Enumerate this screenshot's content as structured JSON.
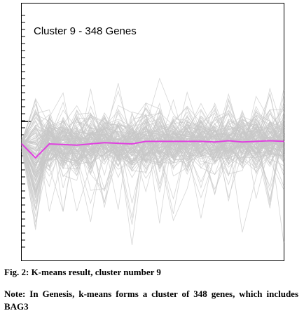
{
  "figure": {
    "caption": "Fig. 2: K-means result, cluster number 9",
    "note": "Note: In Genesis, k-means forms a cluster of 348 genes, which includes BAG3"
  },
  "chart_data": {
    "type": "line",
    "title": "Cluster 9 - 348 Genes",
    "xlabel": "",
    "ylabel": "",
    "grid": false,
    "legend": "none",
    "n_genes": 348,
    "x": [
      1,
      2,
      3,
      4,
      5,
      6,
      7,
      8,
      9,
      10,
      11,
      12,
      13,
      14,
      15,
      16,
      17,
      18,
      19,
      20
    ],
    "ylim": [
      -1,
      1
    ],
    "series": [
      {
        "role": "cluster-mean",
        "color": "#e040e0",
        "values": [
          0.0,
          -0.22,
          0.0,
          -0.01,
          -0.02,
          0.0,
          0.02,
          0.01,
          0.0,
          0.04,
          0.04,
          0.04,
          0.04,
          0.04,
          0.03,
          0.05,
          0.03,
          0.04,
          0.05,
          0.04
        ]
      }
    ],
    "gene_profiles_color": "#c8c8c8"
  }
}
